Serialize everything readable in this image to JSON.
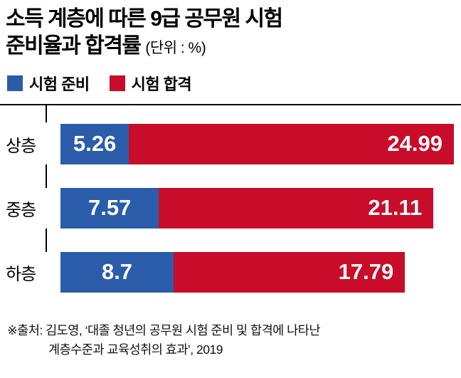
{
  "header": {
    "title_line1": "소득 계층에 따른 9급 공무원 시험",
    "title_line2": "준비율과 합격률",
    "unit_note": "(단위 : %)"
  },
  "legend": {
    "items": [
      {
        "label": "시험 준비",
        "color": "#2b5ca9"
      },
      {
        "label": "시험 합격",
        "color": "#c80c2a"
      }
    ]
  },
  "source": {
    "line1": "※출처: 김도영, ‘대졸 청년의 공무원 시험 준비 및 합격에 나타난",
    "line2": "계층수준과 교육성취의 효과’, 2019"
  },
  "chart_data": {
    "type": "bar",
    "orientation": "horizontal-stacked",
    "title": "소득 계층에 따른 9급 공무원 시험 준비율과 합격률",
    "unit": "%",
    "categories": [
      "상층",
      "중층",
      "하층"
    ],
    "series": [
      {
        "name": "시험 준비",
        "color": "#2b5ca9",
        "values": [
          5.26,
          7.57,
          8.7
        ]
      },
      {
        "name": "시험 합격",
        "color": "#c80c2a",
        "values": [
          24.99,
          21.11,
          17.79
        ]
      }
    ],
    "totals": [
      30.25,
      28.68,
      26.49
    ],
    "xlim": [
      0,
      30.25
    ],
    "grid": false,
    "legend_position": "top-left",
    "value_labels": "inside-white"
  }
}
